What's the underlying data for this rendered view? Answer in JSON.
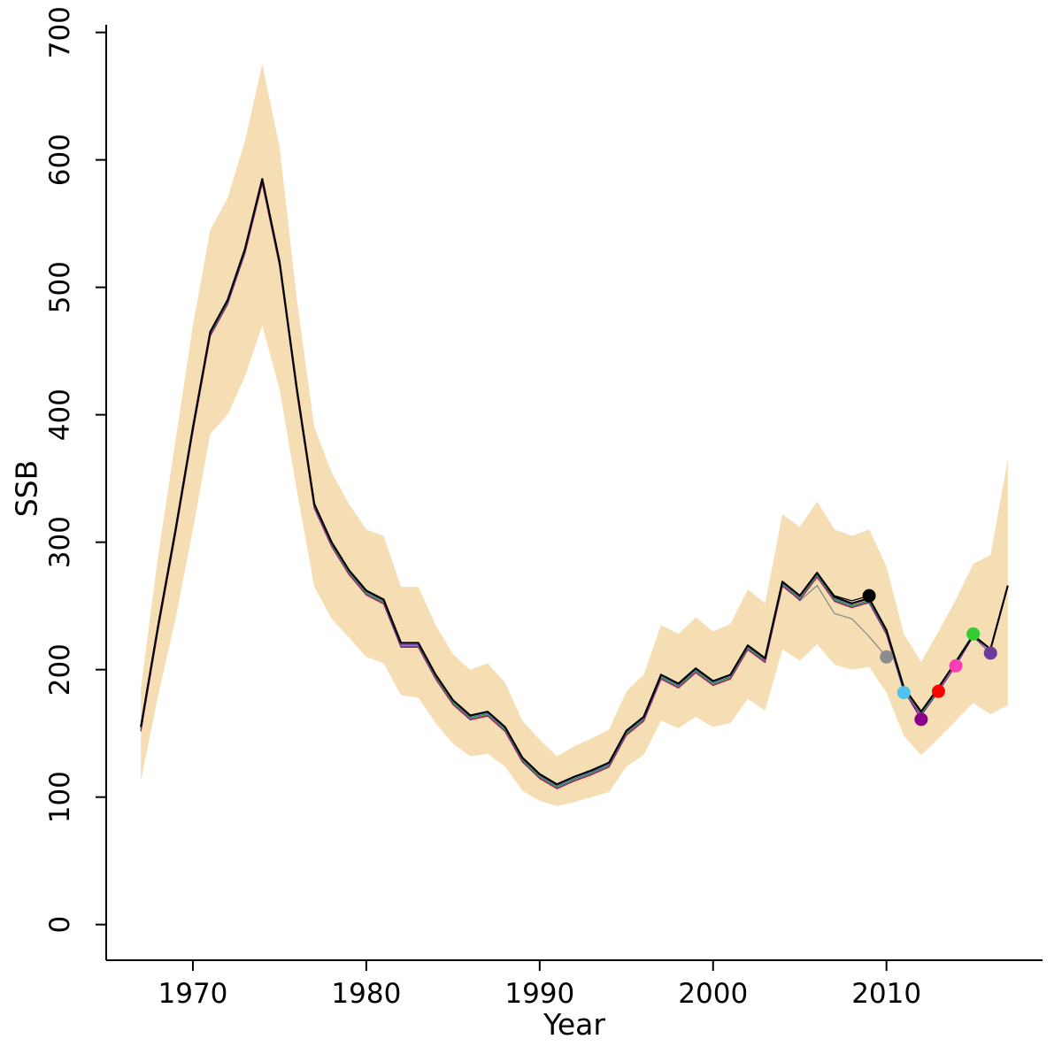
{
  "chart_data": {
    "type": "line",
    "title": "",
    "xlabel": "Year",
    "ylabel": "SSB",
    "grid": false,
    "legend": "none",
    "box_type": "l-shaped-axes",
    "xlim": [
      1965,
      2019
    ],
    "ylim": [
      -28,
      706
    ],
    "x_ticks": [
      1970,
      1980,
      1990,
      2000,
      2010
    ],
    "y_ticks": [
      0,
      100,
      200,
      300,
      400,
      500,
      600,
      700
    ],
    "years": [
      1967,
      1968,
      1969,
      1970,
      1971,
      1972,
      1973,
      1974,
      1975,
      1976,
      1977,
      1978,
      1979,
      1980,
      1981,
      1982,
      1983,
      1984,
      1985,
      1986,
      1987,
      1988,
      1989,
      1990,
      1991,
      1992,
      1993,
      1994,
      1995,
      1996,
      1997,
      1998,
      1999,
      2000,
      2001,
      2002,
      2003,
      2004,
      2005,
      2006,
      2007,
      2008,
      2009,
      2010,
      2011,
      2012,
      2013,
      2014,
      2015,
      2016,
      2017
    ],
    "band": {
      "name": "ssb-confidence-interval",
      "color": "#F5DEB3",
      "lower": [
        113,
        180,
        240,
        310,
        385,
        400,
        430,
        470,
        420,
        340,
        265,
        240,
        225,
        210,
        205,
        180,
        178,
        158,
        142,
        132,
        134,
        124,
        105,
        97,
        93,
        96,
        100,
        104,
        124,
        133,
        160,
        154,
        163,
        155,
        158,
        177,
        168,
        216,
        207,
        220,
        204,
        200,
        202,
        182,
        148,
        133,
        146,
        160,
        174,
        165,
        172
      ],
      "upper": [
        185,
        290,
        380,
        470,
        545,
        570,
        615,
        675,
        610,
        490,
        390,
        355,
        330,
        310,
        305,
        265,
        265,
        235,
        212,
        200,
        205,
        190,
        160,
        145,
        132,
        140,
        146,
        153,
        183,
        196,
        235,
        228,
        241,
        230,
        236,
        263,
        252,
        322,
        312,
        332,
        310,
        305,
        310,
        281,
        228,
        206,
        230,
        255,
        283,
        290,
        365
      ]
    },
    "base_series": {
      "name": "ssb-current-assessment",
      "color": "#000000",
      "values": [
        155,
        235,
        310,
        390,
        465,
        490,
        530,
        585,
        520,
        420,
        330,
        300,
        278,
        262,
        255,
        221,
        221,
        196,
        176,
        164,
        167,
        155,
        131,
        118,
        110,
        116,
        121,
        127,
        152,
        163,
        196,
        189,
        201,
        191,
        196,
        219,
        209,
        269,
        258,
        276,
        257,
        252,
        256,
        231,
        186,
        167,
        186,
        206,
        227,
        216,
        266
      ]
    },
    "retro_peels": [
      {
        "end_year": 2009,
        "color": "#000000",
        "offset": 0,
        "tail": {
          "2007": 258,
          "2008": 254,
          "2009": 258
        }
      },
      {
        "end_year": 2010,
        "color": "#8C8C8C",
        "offset": -0.6,
        "tail": {
          "2005": 254,
          "2006": 266,
          "2007": 244,
          "2008": 240,
          "2009": 226,
          "2010": 210
        }
      },
      {
        "end_year": 2011,
        "color": "#4FC3EE",
        "offset": -1.2,
        "tail": {
          "2009": 252,
          "2010": 228,
          "2011": 182
        }
      },
      {
        "end_year": 2012,
        "color": "#8B008B",
        "offset": -1.8,
        "tail": {
          "2010": 229,
          "2011": 184,
          "2012": 161
        }
      },
      {
        "end_year": 2013,
        "color": "#FF0000",
        "offset": -3.4,
        "tail": {
          "2011": 184,
          "2012": 164,
          "2013": 183
        }
      },
      {
        "end_year": 2014,
        "color": "#FF3EB5",
        "offset": -2.6,
        "tail": {
          "2012": 166,
          "2013": 184,
          "2014": 203
        }
      },
      {
        "end_year": 2015,
        "color": "#33CC33",
        "offset": -2.2,
        "tail": {
          "2013": 185,
          "2014": 207,
          "2015": 228
        }
      },
      {
        "end_year": 2016,
        "color": "#6A3D9A",
        "offset": -3.0,
        "tail": {
          "2015": 226,
          "2016": 213
        }
      }
    ]
  }
}
